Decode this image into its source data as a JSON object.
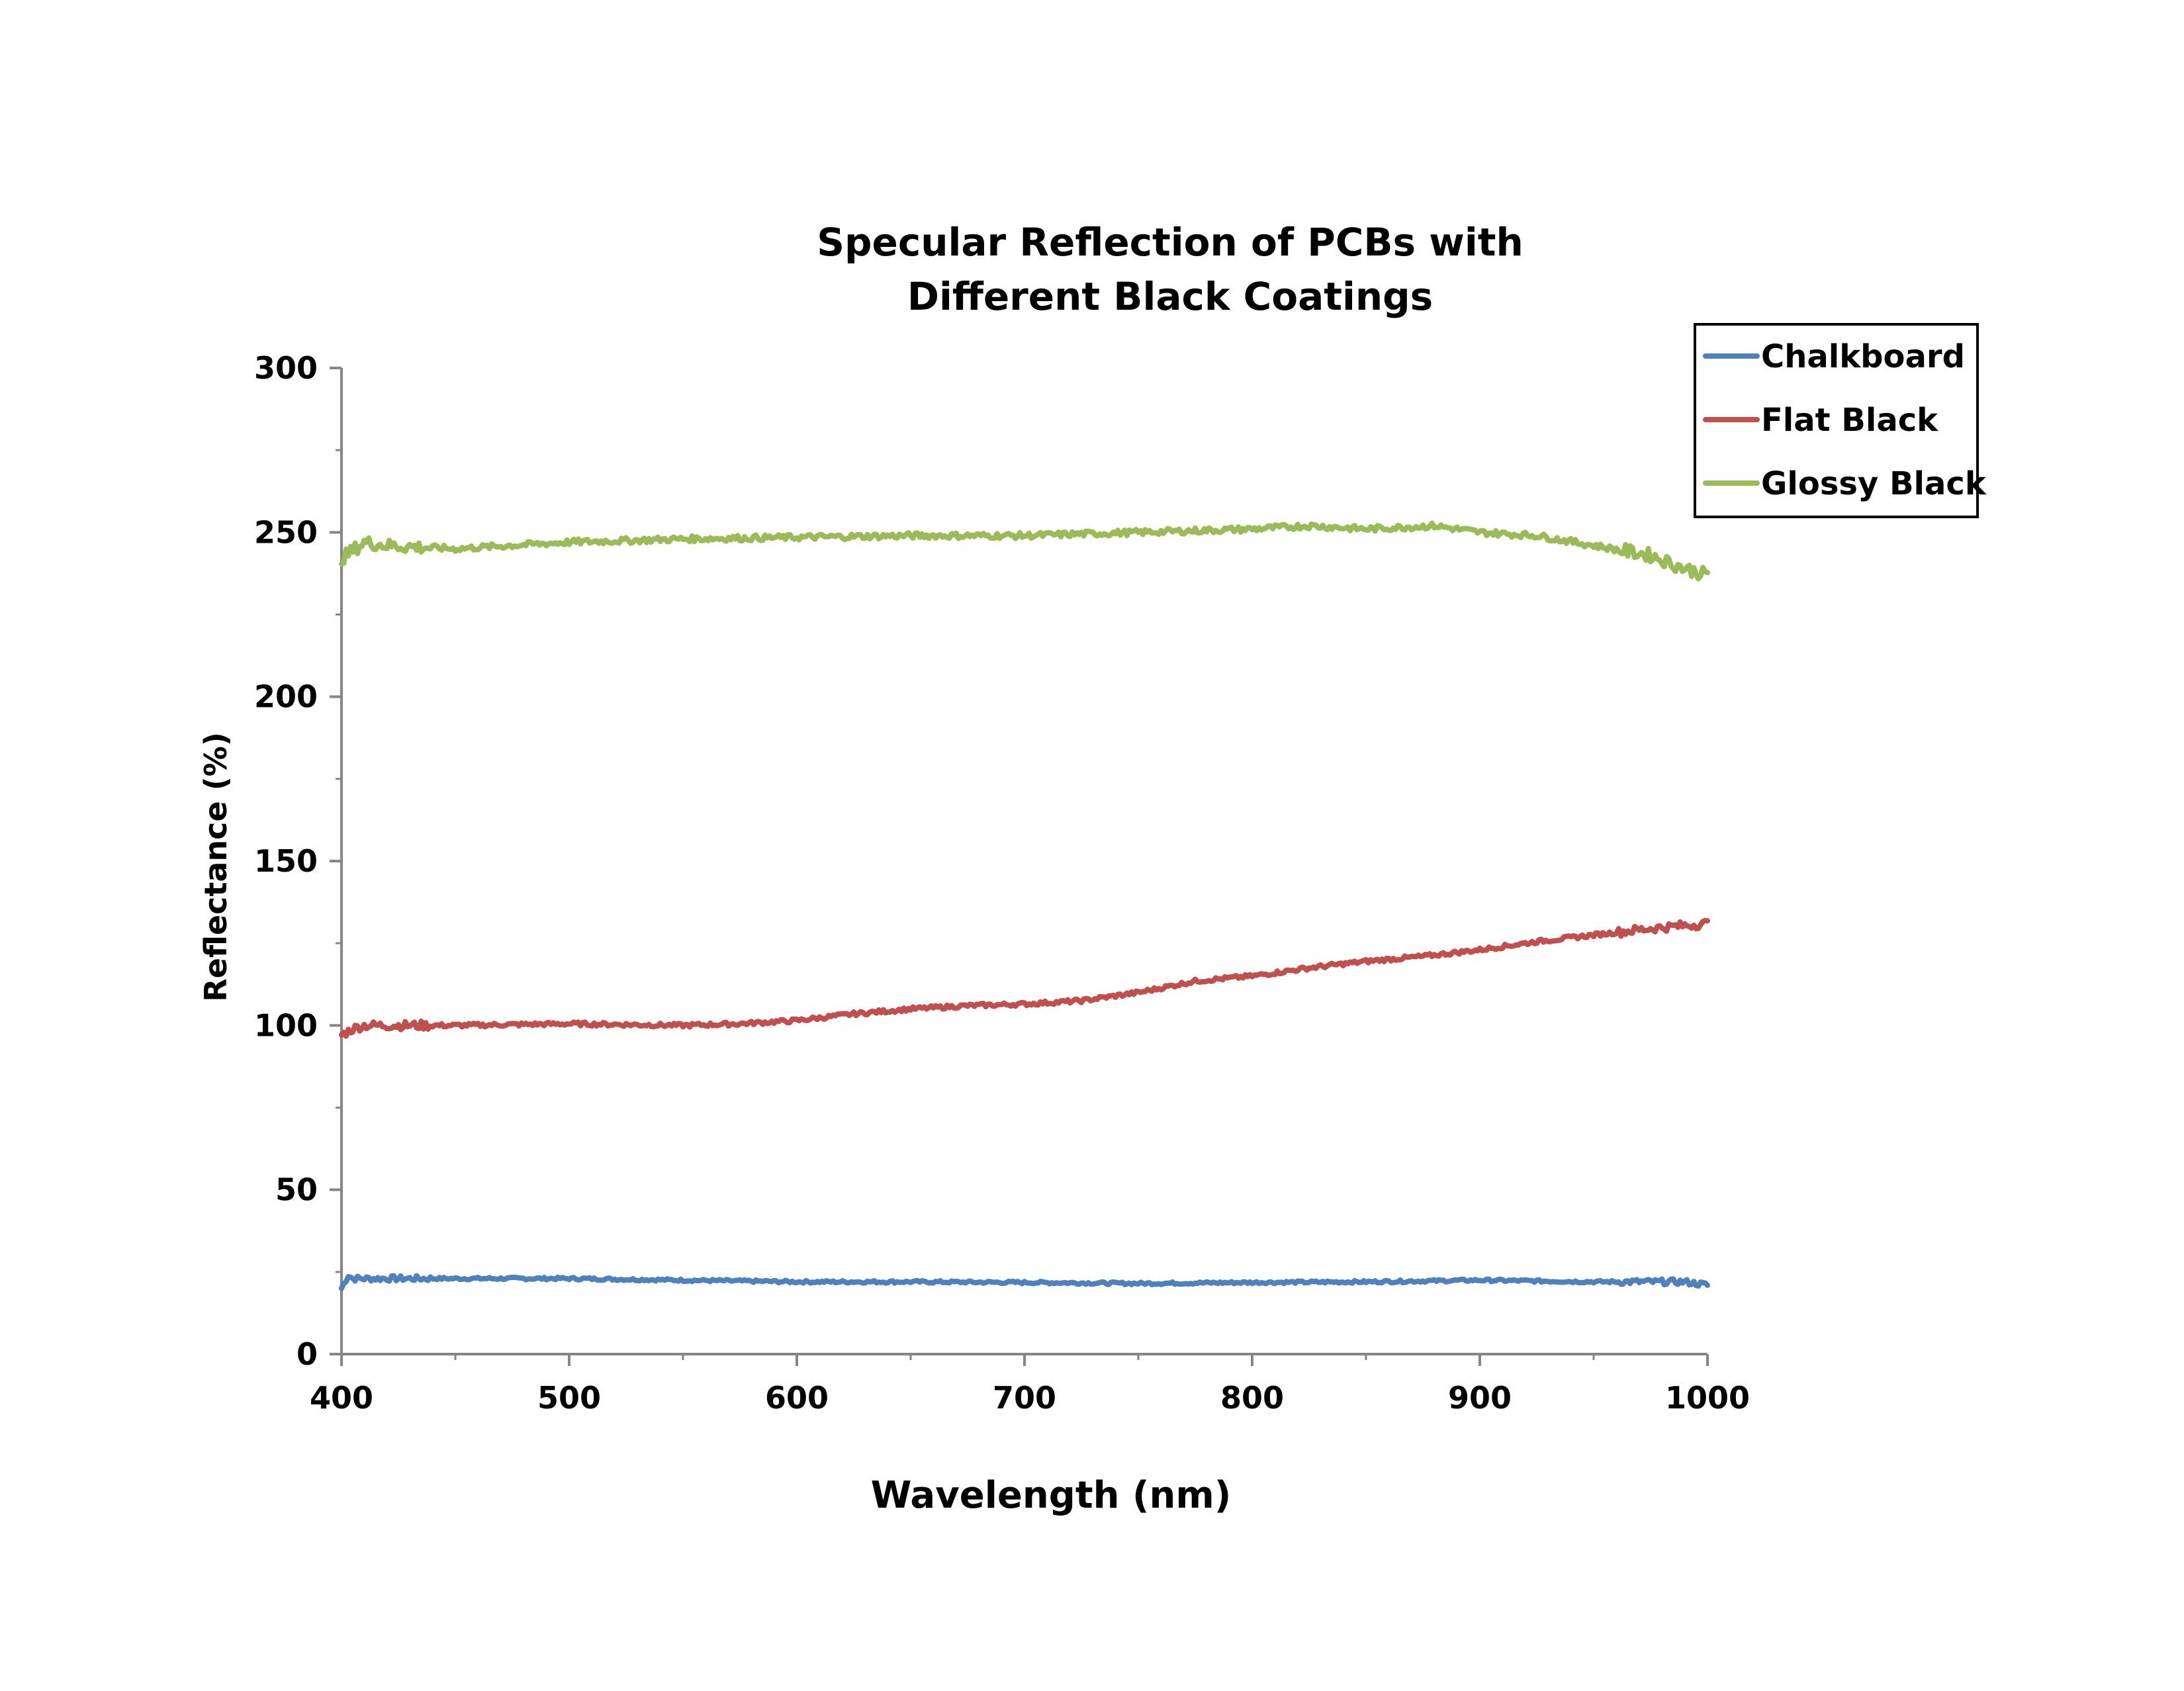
{
  "chart_data": {
    "type": "line",
    "title_lines": [
      "Specular Reflection of PCBs with",
      "Different Black Coatings"
    ],
    "xlabel": "Wavelength (nm)",
    "ylabel": "Reflectance (%)",
    "xlim": [
      400,
      1000
    ],
    "ylim": [
      0,
      300
    ],
    "x_ticks": [
      400,
      500,
      600,
      700,
      800,
      900,
      1000
    ],
    "x_tick_labels": [
      "400",
      "500",
      "600",
      "700",
      "800",
      "900",
      "1000"
    ],
    "y_ticks": [
      0,
      50,
      100,
      150,
      200,
      250,
      300
    ],
    "y_tick_labels": [
      "0",
      "50",
      "100",
      "150",
      "200",
      "250",
      "300"
    ],
    "grid": false,
    "legend_position": "top-right",
    "series": [
      {
        "name": "Chalkboard",
        "color": "#4f81bd",
        "x": [
          400,
          403,
          405,
          410,
          420,
          450,
          500,
          550,
          600,
          650,
          700,
          750,
          800,
          850,
          900,
          950,
          990,
          1000
        ],
        "values": [
          20,
          24,
          23,
          23,
          23,
          23,
          23,
          22.5,
          22,
          22,
          21.8,
          21.5,
          21.8,
          22,
          22.5,
          22,
          22,
          21
        ]
      },
      {
        "name": "Flat Black",
        "color": "#c0504d",
        "x": [
          400,
          405,
          410,
          450,
          500,
          550,
          575,
          600,
          625,
          650,
          675,
          700,
          725,
          750,
          775,
          800,
          825,
          850,
          875,
          900,
          925,
          950,
          975,
          1000
        ],
        "values": [
          97,
          99,
          100,
          100,
          100.5,
          100,
          100.5,
          101.5,
          103.5,
          105,
          106,
          106.5,
          107.5,
          110,
          113.5,
          115,
          117.5,
          119.5,
          121,
          123,
          125.5,
          127.5,
          129.5,
          131
        ]
      },
      {
        "name": "Glossy Black",
        "color": "#9bbb59",
        "x": [
          400,
          410,
          420,
          450,
          500,
          550,
          600,
          650,
          700,
          750,
          800,
          825,
          850,
          880,
          900,
          925,
          950,
          975,
          990,
          1000
        ],
        "values": [
          242,
          247,
          246,
          245,
          247,
          248,
          248.5,
          249,
          249,
          250,
          251,
          252,
          251,
          252,
          250,
          249,
          246,
          243,
          239,
          237
        ]
      }
    ]
  }
}
